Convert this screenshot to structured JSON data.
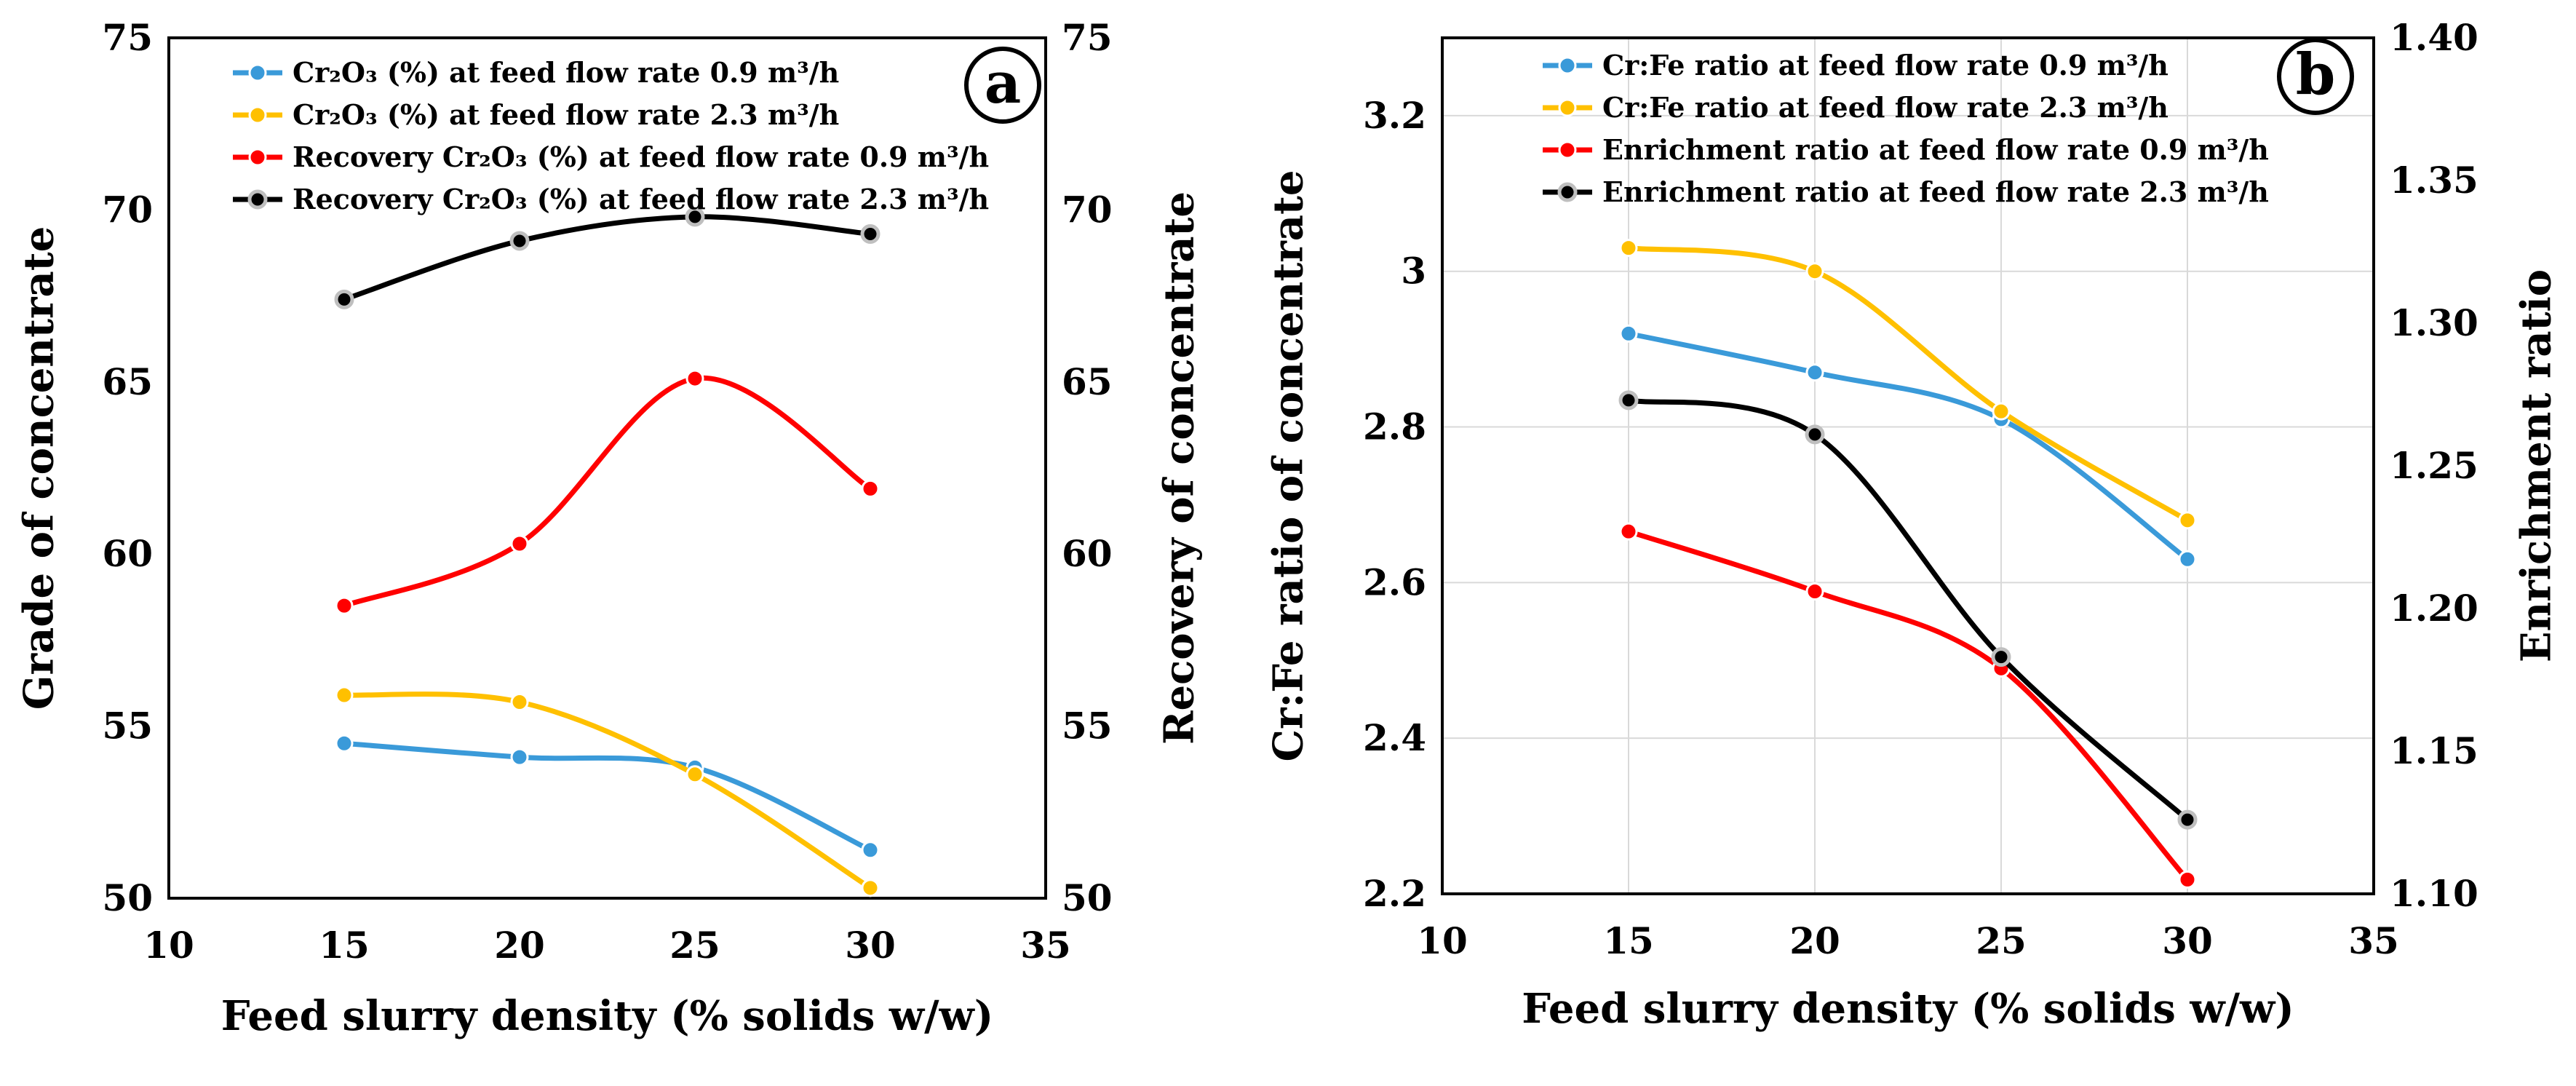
{
  "chart_data": [
    {
      "type": "line",
      "panel_label": "a",
      "x": [
        15,
        20,
        25,
        30
      ],
      "xlim": [
        10,
        35
      ],
      "xticks": [
        10,
        15,
        20,
        25,
        30,
        35
      ],
      "xlabel": "Feed slurry density (% solids w/w)",
      "ylabel": "Grade of concentrate",
      "y2label": "Recovery of concentrate",
      "ylim": [
        50,
        75
      ],
      "yticks": [
        50,
        55,
        60,
        65,
        70,
        75
      ],
      "y2lim": [
        50,
        75
      ],
      "y2ticks": [
        50,
        55,
        60,
        65,
        70,
        75
      ],
      "grid": false,
      "legend_position": "top",
      "series": [
        {
          "name": "Cr₂O₃ (%) at feed flow rate 0.9 m³/h",
          "axis": "left",
          "color": "#3a9ad9",
          "values": [
            54.5,
            54.1,
            53.8,
            51.4
          ]
        },
        {
          "name": "Cr₂O₃ (%) at feed flow rate 2.3 m³/h",
          "axis": "left",
          "color": "#ffc000",
          "values": [
            55.9,
            55.7,
            53.6,
            50.3
          ]
        },
        {
          "name": "Recovery Cr₂O₃ (%)  at feed flow rate 0.9 m³/h",
          "axis": "right",
          "color": "#ff0000",
          "values": [
            58.5,
            60.3,
            65.1,
            61.9
          ]
        },
        {
          "name": "Recovery Cr₂O₃ (%)  at feed flow rate 2.3 m³/h",
          "axis": "right",
          "color": "#000000",
          "values": [
            67.4,
            69.1,
            69.8,
            69.3
          ]
        }
      ]
    },
    {
      "type": "line",
      "panel_label": "b",
      "x": [
        15,
        20,
        25,
        30
      ],
      "xlim": [
        10,
        35
      ],
      "xticks": [
        10,
        15,
        20,
        25,
        30,
        35
      ],
      "xlabel": "Feed slurry density (% solids w/w)",
      "ylabel": "Cr:Fe ratio of concentrate",
      "y2label": "Enrichment ratio",
      "ylim": [
        2.2,
        3.3
      ],
      "yticks": [
        2.2,
        2.4,
        2.6,
        2.8,
        3.0,
        3.2
      ],
      "yticklabels": [
        "2.2",
        "2.4",
        "2.6",
        "2.8",
        "3",
        "3.2"
      ],
      "y2lim": [
        1.1,
        1.4
      ],
      "y2ticks": [
        1.1,
        1.15,
        1.2,
        1.25,
        1.3,
        1.35,
        1.4
      ],
      "y2ticklabels": [
        "1.10",
        "1.15",
        "1.20",
        "1.25",
        "1.30",
        "1.35",
        "1.40"
      ],
      "grid": true,
      "legend_position": "top",
      "series": [
        {
          "name": "Cr:Fe ratio  at feed flow rate 0.9 m³/h",
          "axis": "left",
          "color": "#3a9ad9",
          "values": [
            2.92,
            2.87,
            2.81,
            2.63
          ]
        },
        {
          "name": "Cr:Fe ratio  at feed flow rate 2.3 m³/h",
          "axis": "left",
          "color": "#ffc000",
          "values": [
            3.03,
            3.0,
            2.82,
            2.68
          ]
        },
        {
          "name": "Enrichment ratio  at feed flow rate 0.9 m³/h",
          "axis": "right",
          "color": "#ff0000",
          "values": [
            1.227,
            1.206,
            1.179,
            1.105
          ]
        },
        {
          "name": "Enrichment ratio  at feed flow rate 2.3 m³/h",
          "axis": "right",
          "color": "#000000",
          "values": [
            1.273,
            1.261,
            1.183,
            1.126
          ]
        }
      ]
    }
  ]
}
